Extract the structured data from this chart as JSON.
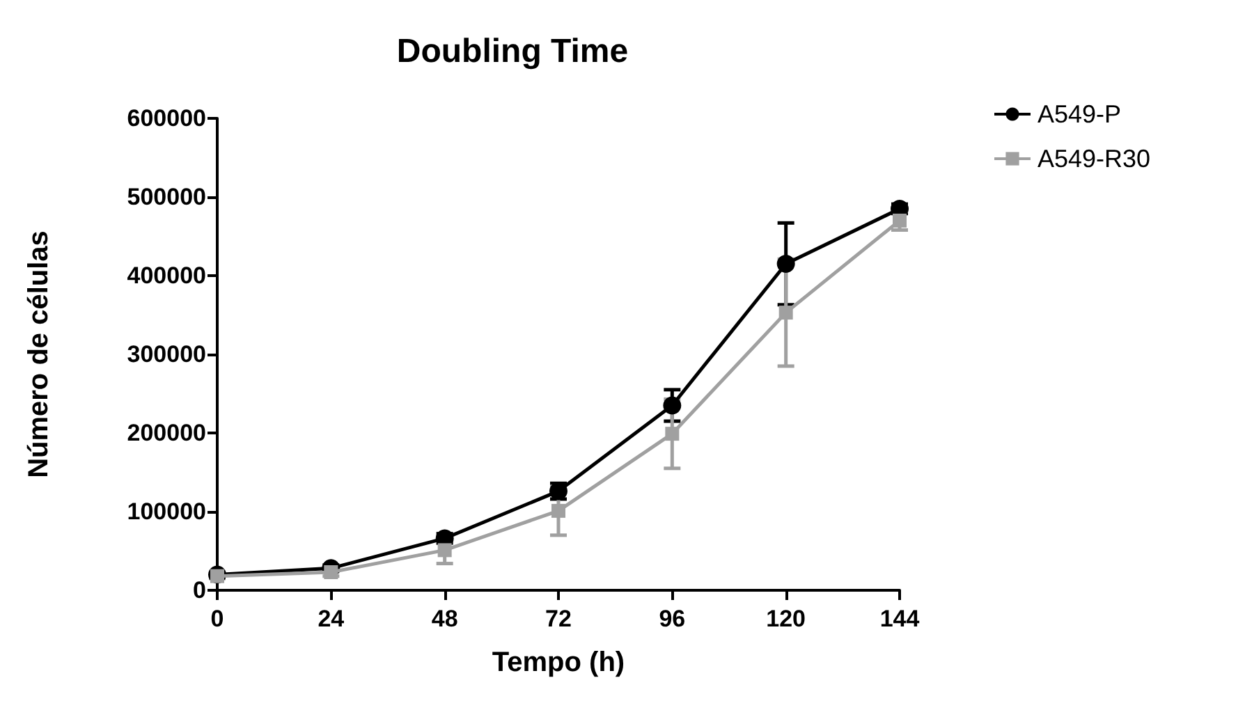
{
  "chart_data": {
    "type": "line",
    "title": "Doubling Time",
    "xlabel": "Tempo (h)",
    "ylabel": "Número de células",
    "x": [
      0,
      24,
      48,
      72,
      96,
      120,
      144
    ],
    "xlim": [
      0,
      144
    ],
    "xticks": [
      0,
      24,
      48,
      72,
      96,
      120,
      144
    ],
    "ylim": [
      0,
      600000
    ],
    "yticks": [
      0,
      100000,
      200000,
      300000,
      400000,
      500000,
      600000
    ],
    "series": [
      {
        "name": "A549-P",
        "color": "#000000",
        "marker": "circle",
        "values": [
          20000,
          28000,
          66000,
          126000,
          235000,
          415000,
          485000
        ],
        "errors": [
          2000,
          4000,
          6000,
          10000,
          20000,
          52000,
          6000
        ]
      },
      {
        "name": "A549-R30",
        "color": "#a0a0a0",
        "marker": "square",
        "values": [
          18000,
          23000,
          51000,
          101000,
          199000,
          353000,
          470000
        ],
        "errors": [
          3000,
          5000,
          17000,
          31000,
          44000,
          68000,
          12000
        ]
      }
    ],
    "grid": false,
    "legend": "top right",
    "line_style": "solid"
  }
}
